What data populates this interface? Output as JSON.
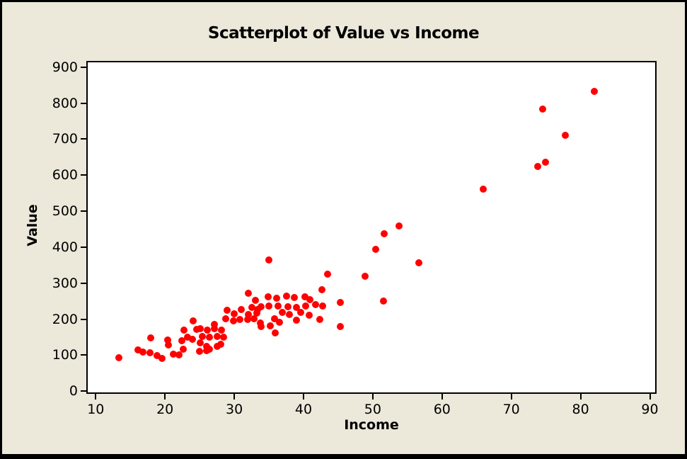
{
  "window": {
    "kind": "minitab-graph"
  },
  "colors": {
    "background": "#ECE8DA",
    "plot_background": "#FFFFFF",
    "frame": "#000000",
    "marker": "#FF0000",
    "text": "#000000"
  },
  "chart_data": {
    "type": "scatter",
    "title": "Scatterplot of Value vs Income",
    "xlabel": "Income",
    "ylabel": "Value",
    "xlim": [
      8.6,
      91
    ],
    "ylim": [
      -8,
      917
    ],
    "x_ticks": [
      10,
      20,
      30,
      40,
      50,
      60,
      70,
      80,
      90
    ],
    "y_ticks": [
      0,
      100,
      200,
      300,
      400,
      500,
      600,
      700,
      800,
      900
    ],
    "grid": false,
    "legend": "none",
    "marker_color": "#FF0000",
    "points": [
      [
        13.3,
        94
      ],
      [
        16.1,
        115
      ],
      [
        16.8,
        108
      ],
      [
        17.8,
        106
      ],
      [
        17.9,
        148
      ],
      [
        18.9,
        99
      ],
      [
        19.6,
        92
      ],
      [
        20.4,
        142
      ],
      [
        20.5,
        128
      ],
      [
        21.2,
        102
      ],
      [
        22,
        100
      ],
      [
        22.4,
        140
      ],
      [
        22.6,
        117
      ],
      [
        22.7,
        170
      ],
      [
        23.2,
        150
      ],
      [
        24,
        144
      ],
      [
        24.1,
        195
      ],
      [
        24.6,
        172
      ],
      [
        25,
        110
      ],
      [
        25.1,
        134
      ],
      [
        25.1,
        173
      ],
      [
        25.4,
        153
      ],
      [
        26,
        113
      ],
      [
        26,
        124
      ],
      [
        26.1,
        170
      ],
      [
        26.4,
        117
      ],
      [
        26.4,
        150
      ],
      [
        27.1,
        173
      ],
      [
        27.1,
        185
      ],
      [
        27.5,
        124
      ],
      [
        27.5,
        153
      ],
      [
        28,
        130
      ],
      [
        28.2,
        170
      ],
      [
        28.5,
        150
      ],
      [
        28.8,
        201
      ],
      [
        29,
        224
      ],
      [
        29.9,
        196
      ],
      [
        30,
        215
      ],
      [
        30.8,
        199
      ],
      [
        31,
        227
      ],
      [
        31.9,
        199
      ],
      [
        32,
        214
      ],
      [
        32,
        272
      ],
      [
        32.5,
        233
      ],
      [
        32.9,
        201
      ],
      [
        33.1,
        252
      ],
      [
        33.3,
        216
      ],
      [
        33.4,
        227
      ],
      [
        33.8,
        189
      ],
      [
        33.9,
        179
      ],
      [
        33.9,
        234
      ],
      [
        34.9,
        262
      ],
      [
        35,
        237
      ],
      [
        35,
        364
      ],
      [
        35.2,
        182
      ],
      [
        35.8,
        202
      ],
      [
        35.9,
        162
      ],
      [
        36.1,
        258
      ],
      [
        36.3,
        236
      ],
      [
        36.5,
        192
      ],
      [
        36.9,
        219
      ],
      [
        37.5,
        265
      ],
      [
        37.8,
        234
      ],
      [
        38,
        214
      ],
      [
        38.7,
        260
      ],
      [
        39,
        198
      ],
      [
        39,
        232
      ],
      [
        39.6,
        218
      ],
      [
        40.2,
        262
      ],
      [
        40.3,
        236
      ],
      [
        40.8,
        212
      ],
      [
        40.9,
        254
      ],
      [
        41.7,
        241
      ],
      [
        42.4,
        199
      ],
      [
        42.7,
        281
      ],
      [
        42.8,
        236
      ],
      [
        43.5,
        325
      ],
      [
        45.3,
        179
      ],
      [
        45.3,
        247
      ],
      [
        48.9,
        319
      ],
      [
        50.4,
        393
      ],
      [
        51.5,
        251
      ],
      [
        51.6,
        438
      ],
      [
        53.8,
        459
      ],
      [
        56.7,
        356
      ],
      [
        65.9,
        562
      ],
      [
        73.8,
        625
      ],
      [
        74.5,
        783
      ],
      [
        74.9,
        635
      ],
      [
        77.8,
        710
      ],
      [
        82,
        833
      ]
    ]
  }
}
